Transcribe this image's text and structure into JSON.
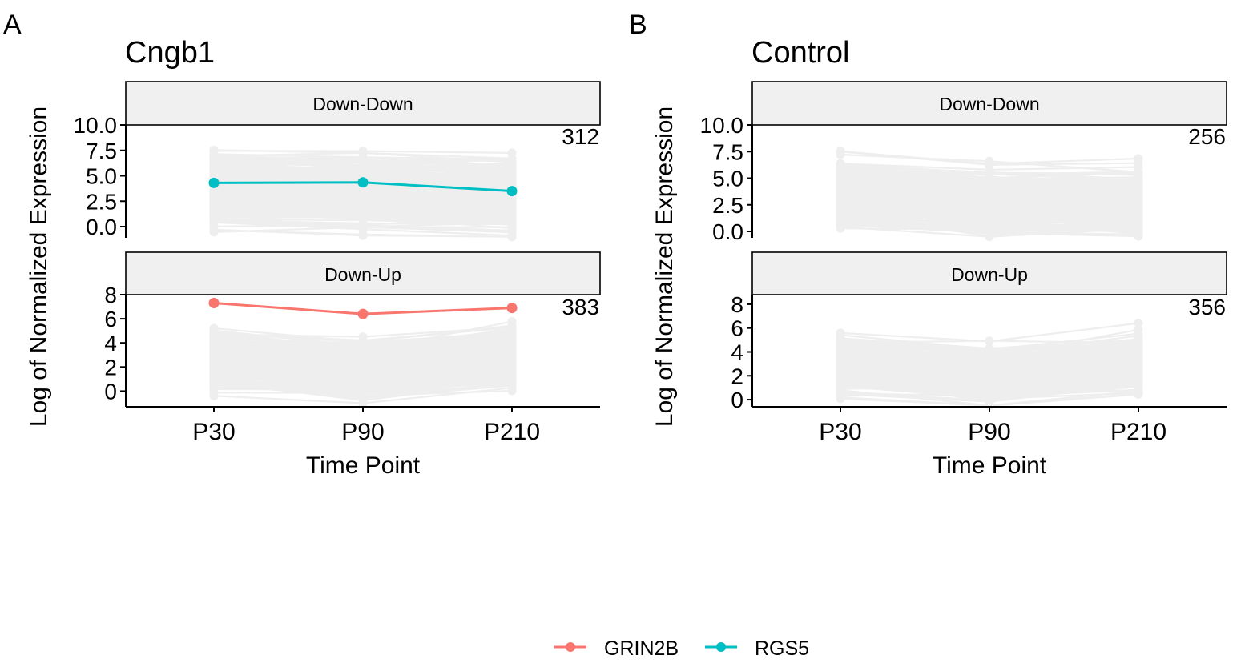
{
  "chart_data": [
    {
      "type": "line",
      "panel_letter": "A",
      "title": "Cngb1",
      "xlabel": "Time Point",
      "ylabel": "Log of Normalized Expression",
      "categories": [
        "P30",
        "P90",
        "P210"
      ],
      "facets": [
        {
          "strip": "Down-Down",
          "count": "312",
          "ylim": [
            -1.1,
            10.0
          ],
          "yticks": [
            0.0,
            2.5,
            5.0,
            7.5,
            10.0
          ],
          "ytick_labels": [
            "0.0",
            "2.5",
            "5.0",
            "7.5",
            "10.0"
          ],
          "background_trend": [
            3.6,
            3.4,
            3.0
          ],
          "background_spread": 1.6,
          "background_range": [
            -1.0,
            9.7
          ],
          "series": [
            {
              "name": "RGS5",
              "values": [
                4.3,
                4.35,
                3.5
              ]
            }
          ]
        },
        {
          "strip": "Down-Up",
          "count": "383",
          "ylim": [
            -1.3,
            8.0
          ],
          "yticks": [
            0,
            2,
            4,
            6,
            8
          ],
          "ytick_labels": [
            "0",
            "2",
            "4",
            "6",
            "8"
          ],
          "background_trend": [
            2.7,
            1.8,
            2.9
          ],
          "background_spread": 1.1,
          "background_range": [
            -1.0,
            7.6
          ],
          "series": [
            {
              "name": "GRIN2B",
              "values": [
                7.3,
                6.4,
                6.9
              ]
            }
          ]
        }
      ]
    },
    {
      "type": "line",
      "panel_letter": "B",
      "title": "Control",
      "xlabel": "Time Point",
      "ylabel": "Log of Normalized Expression",
      "categories": [
        "P30",
        "P90",
        "P210"
      ],
      "facets": [
        {
          "strip": "Down-Down",
          "count": "256",
          "ylim": [
            -0.6,
            10.0
          ],
          "yticks": [
            0.0,
            2.5,
            5.0,
            7.5,
            10.0
          ],
          "ytick_labels": [
            "0.0",
            "2.5",
            "5.0",
            "7.5",
            "10.0"
          ],
          "background_trend": [
            3.6,
            2.9,
            2.8
          ],
          "background_spread": 1.3,
          "background_range": [
            -0.5,
            9.6
          ],
          "series": []
        },
        {
          "strip": "Down-Up",
          "count": "356",
          "ylim": [
            -0.6,
            8.8
          ],
          "yticks": [
            0,
            2,
            4,
            6,
            8
          ],
          "ytick_labels": [
            "0",
            "2",
            "4",
            "6",
            "8"
          ],
          "background_trend": [
            3.0,
            2.1,
            3.1
          ],
          "background_spread": 1.0,
          "background_range": [
            -0.5,
            8.2
          ],
          "series": []
        }
      ]
    }
  ],
  "legend": {
    "placement": "bottom",
    "items": [
      {
        "name": "GRIN2B",
        "color": "#F8766D"
      },
      {
        "name": "RGS5",
        "color": "#00BFC4"
      }
    ]
  },
  "colors": {
    "background_lines": "#b3b3b3",
    "strip_fill": "#f0f0f0"
  }
}
